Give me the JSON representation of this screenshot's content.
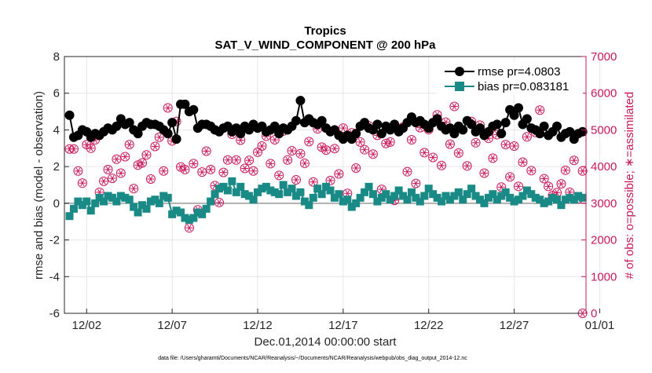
{
  "chart_data": {
    "type": "line",
    "title": "Tropics",
    "subtitle": "SAT_V_WIND_COMPONENT @ 200 hPa",
    "xlabel": "Dec.01,2014 00:00:00 start",
    "ylabel_left": "rmse and bias (model - observation)",
    "ylabel_right": "# of obs: o=possible; ∗=assimilated",
    "footnote": "data file: /Users/gharamti/Documents/NCAR/Reanalysis/~/Documents/NCAR/Reanalysis/webpub/obs_diag_output_2014-12.nc",
    "x_range_days": [
      0.7,
      31.2
    ],
    "left_ylim": [
      -6,
      8
    ],
    "right_ylim": [
      0,
      7000
    ],
    "left_ticks": [
      "-6",
      "-4",
      "-2",
      "0",
      "2",
      "4",
      "6",
      "8"
    ],
    "left_tick_values": [
      -6,
      -4,
      -2,
      0,
      2,
      4,
      6,
      8
    ],
    "right_ticks": [
      "0",
      "1000",
      "2000",
      "3000",
      "4000",
      "5000",
      "6000",
      "7000"
    ],
    "right_tick_values": [
      0,
      1000,
      2000,
      3000,
      4000,
      5000,
      6000,
      7000
    ],
    "x_ticks": [
      "12/02",
      "12/07",
      "12/12",
      "12/17",
      "12/22",
      "12/27",
      "01/01"
    ],
    "x_tick_days": [
      2,
      7,
      12,
      17,
      22,
      27,
      32
    ],
    "grid": true,
    "legend_position": "top-right",
    "colors": {
      "rmse": "#000000",
      "bias": "#1a8a86",
      "obs": "#c8185a",
      "axis": "#262626",
      "zero_line": "#b0b0b0",
      "grid": "#e6e6e6"
    },
    "series": [
      {
        "name": "rmse",
        "legend_label": "rmse pr=4.0803",
        "axis": "left",
        "x": [
          1.0,
          1.25,
          1.5,
          1.75,
          2.0,
          2.25,
          2.5,
          2.75,
          3.0,
          3.25,
          3.5,
          3.75,
          4.0,
          4.25,
          4.5,
          4.75,
          5.0,
          5.25,
          5.5,
          5.75,
          6.0,
          6.25,
          6.5,
          6.75,
          7.0,
          7.25,
          7.5,
          7.75,
          8.0,
          8.25,
          8.5,
          8.75,
          9.0,
          9.25,
          9.5,
          9.75,
          10.0,
          10.25,
          10.5,
          10.75,
          11.0,
          11.25,
          11.5,
          11.75,
          12.0,
          12.25,
          12.5,
          12.75,
          13.0,
          13.25,
          13.5,
          13.75,
          14.0,
          14.25,
          14.5,
          14.75,
          15.0,
          15.25,
          15.5,
          15.75,
          16.0,
          16.25,
          16.5,
          16.75,
          17.0,
          17.25,
          17.5,
          17.75,
          18.0,
          18.25,
          18.5,
          18.75,
          19.0,
          19.25,
          19.5,
          19.75,
          20.0,
          20.25,
          20.5,
          20.75,
          21.0,
          21.25,
          21.5,
          21.75,
          22.0,
          22.25,
          22.5,
          22.75,
          23.0,
          23.25,
          23.5,
          23.75,
          24.0,
          24.25,
          24.5,
          24.75,
          25.0,
          25.25,
          25.5,
          25.75,
          26.0,
          26.25,
          26.5,
          26.75,
          27.0,
          27.25,
          27.5,
          27.75,
          28.0,
          28.25,
          28.5,
          28.75,
          29.0,
          29.25,
          29.5,
          29.75,
          30.0,
          30.25,
          30.5,
          30.75,
          31.0
        ],
        "values": [
          4.8,
          3.6,
          3.7,
          4.0,
          3.9,
          3.6,
          3.8,
          3.7,
          3.9,
          4.1,
          4.0,
          4.2,
          4.6,
          4.3,
          4.4,
          4.0,
          3.8,
          4.2,
          4.4,
          4.3,
          4.3,
          4.2,
          4.0,
          3.8,
          4.4,
          3.5,
          5.4,
          5.4,
          5.0,
          5.1,
          4.1,
          4.3,
          4.3,
          4.2,
          4.0,
          3.9,
          4.1,
          4.2,
          3.9,
          4.1,
          3.8,
          4.2,
          4.0,
          4.3,
          4.1,
          4.2,
          3.9,
          4.0,
          4.2,
          3.8,
          4.1,
          4.0,
          4.2,
          4.5,
          5.6,
          4.4,
          4.6,
          4.4,
          4.3,
          4.5,
          4.1,
          3.9,
          4.0,
          3.7,
          3.5,
          3.7,
          3.5,
          3.8,
          4.2,
          4.4,
          4.1,
          4.0,
          4.3,
          3.8,
          4.2,
          4.0,
          4.3,
          3.9,
          4.1,
          4.4,
          4.7,
          4.4,
          4.5,
          4.3,
          4.1,
          4.4,
          4.6,
          4.2,
          4.0,
          4.1,
          3.8,
          4.2,
          4.0,
          4.5,
          4.3,
          3.9,
          4.1,
          3.7,
          3.9,
          4.2,
          4.3,
          3.8,
          4.4,
          5.1,
          4.8,
          5.2,
          4.3,
          4.6,
          4.1,
          4.0,
          3.8,
          4.2,
          3.7,
          3.9,
          4.2,
          3.6,
          3.8,
          3.9,
          3.5,
          3.8,
          3.9
        ],
        "connect": [
          true,
          true,
          true,
          true,
          true,
          true,
          true,
          true,
          true,
          true,
          true,
          true,
          true,
          true,
          true,
          true,
          true,
          true,
          true,
          true,
          true,
          true,
          true,
          true,
          true,
          true,
          true,
          true,
          true,
          true,
          true,
          true,
          true,
          true,
          true,
          true,
          true,
          true,
          true,
          true,
          true,
          true,
          true,
          true,
          true,
          true,
          true,
          true,
          true,
          true,
          true,
          true,
          true,
          true,
          true,
          true,
          true,
          true,
          true,
          true,
          true,
          true,
          true,
          true,
          true,
          true,
          true,
          true,
          true,
          true,
          true,
          true,
          true,
          true,
          true,
          true,
          true,
          true,
          true,
          true,
          true,
          true,
          true,
          true,
          true,
          true,
          true,
          true,
          true,
          true,
          true,
          true,
          true,
          true,
          true,
          true,
          true,
          true,
          true,
          true,
          true,
          true,
          true,
          true,
          true,
          true,
          true,
          true,
          true,
          true,
          true,
          true,
          true,
          true,
          true,
          true,
          true,
          true,
          true,
          true,
          true
        ]
      },
      {
        "name": "bias",
        "legend_label": "bias pr=0.083181",
        "axis": "left",
        "x": [
          1.0,
          1.25,
          1.5,
          1.75,
          2.0,
          2.25,
          2.5,
          2.75,
          3.0,
          3.25,
          3.5,
          3.75,
          4.0,
          4.25,
          4.5,
          4.75,
          5.0,
          5.25,
          5.5,
          5.75,
          6.0,
          6.25,
          6.5,
          6.75,
          7.0,
          7.25,
          7.5,
          7.75,
          8.0,
          8.25,
          8.5,
          8.75,
          9.0,
          9.25,
          9.5,
          9.75,
          10.0,
          10.25,
          10.5,
          10.75,
          11.0,
          11.25,
          11.5,
          11.75,
          12.0,
          12.25,
          12.5,
          12.75,
          13.0,
          13.25,
          13.5,
          13.75,
          14.0,
          14.25,
          14.5,
          14.75,
          15.0,
          15.25,
          15.5,
          15.75,
          16.0,
          16.25,
          16.5,
          16.75,
          17.0,
          17.25,
          17.5,
          17.75,
          18.0,
          18.25,
          18.5,
          18.75,
          19.0,
          19.25,
          19.5,
          19.75,
          20.0,
          20.25,
          20.5,
          20.75,
          21.0,
          21.25,
          21.5,
          21.75,
          22.0,
          22.25,
          22.5,
          22.75,
          23.0,
          23.25,
          23.5,
          23.75,
          24.0,
          24.25,
          24.5,
          24.75,
          25.0,
          25.25,
          25.5,
          25.75,
          26.0,
          26.25,
          26.5,
          26.75,
          27.0,
          27.25,
          27.5,
          27.75,
          28.0,
          28.25,
          28.5,
          28.75,
          29.0,
          29.25,
          29.5,
          29.75,
          30.0,
          30.25,
          30.5,
          30.75,
          31.0
        ],
        "values": [
          -0.7,
          -0.3,
          0.1,
          -0.1,
          0.1,
          -0.4,
          0.0,
          0.3,
          0.1,
          0.4,
          0.3,
          0.1,
          0.4,
          0.3,
          0.2,
          -0.2,
          -0.5,
          -0.1,
          -0.3,
          0.1,
          0.2,
          0.0,
          0.4,
          0.3,
          -0.6,
          -0.4,
          -0.5,
          -0.8,
          -0.9,
          -0.8,
          -0.5,
          -0.6,
          -0.3,
          0.1,
          0.5,
          0.8,
          0.9,
          0.7,
          1.2,
          0.6,
          0.9,
          0.5,
          0.4,
          0.2,
          0.6,
          0.8,
          0.9,
          0.7,
          0.6,
          0.5,
          1.0,
          0.6,
          0.8,
          0.4,
          0.6,
          0.1,
          -0.1,
          0.3,
          0.8,
          0.5,
          0.9,
          0.7,
          0.3,
          0.5,
          0.1,
          0.2,
          -0.2,
          0.0,
          0.3,
          0.6,
          0.9,
          0.5,
          0.1,
          0.3,
          0.5,
          0.2,
          0.4,
          0.7,
          0.4,
          0.2,
          0.6,
          0.3,
          0.1,
          0.4,
          0.8,
          0.5,
          0.3,
          0.1,
          0.4,
          0.2,
          0.4,
          0.6,
          0.2,
          0.5,
          0.8,
          0.4,
          0.2,
          0.0,
          0.3,
          0.5,
          0.2,
          0.4,
          0.6,
          0.3,
          0.1,
          0.2,
          0.4,
          0.7,
          0.5,
          0.3,
          0.2,
          0.0,
          0.1,
          0.3,
          0.2,
          -0.1,
          0.2,
          0.3,
          0.2,
          0.4,
          0.3
        ],
        "connect": [
          true,
          true,
          true,
          true,
          true,
          true,
          true,
          true,
          true,
          true,
          true,
          true,
          true,
          true,
          true,
          true,
          true,
          true,
          true,
          true,
          true,
          true,
          true,
          true,
          true,
          true,
          true,
          true,
          true,
          true,
          true,
          true,
          true,
          true,
          true,
          true,
          true,
          true,
          true,
          true,
          true,
          true,
          true,
          true,
          true,
          true,
          true,
          true,
          true,
          true,
          true,
          true,
          true,
          true,
          true,
          true,
          true,
          true,
          true,
          true,
          true,
          true,
          true,
          true,
          true,
          true,
          true,
          true,
          true,
          true,
          true,
          true,
          true,
          true,
          true,
          true,
          true,
          true,
          true,
          true,
          true,
          true,
          true,
          true,
          true,
          true,
          true,
          true,
          true,
          true,
          true,
          true,
          true,
          true,
          true,
          true,
          true,
          true,
          true,
          true,
          true,
          true,
          true,
          true,
          true,
          true,
          true,
          true,
          true,
          true,
          true,
          true,
          true,
          true,
          true,
          true,
          true,
          true,
          true,
          true,
          true
        ]
      },
      {
        "name": "obs_count",
        "legend_label": "",
        "axis": "right",
        "x": [
          1.0,
          1.25,
          1.5,
          1.75,
          2.0,
          2.25,
          2.5,
          2.75,
          3.0,
          3.25,
          3.5,
          3.75,
          4.0,
          4.25,
          4.5,
          4.75,
          5.0,
          5.25,
          5.5,
          5.75,
          6.0,
          6.25,
          6.5,
          6.75,
          7.0,
          7.25,
          7.5,
          7.75,
          8.0,
          8.25,
          8.5,
          8.75,
          9.0,
          9.25,
          9.5,
          9.75,
          10.0,
          10.25,
          10.5,
          10.75,
          11.0,
          11.25,
          11.5,
          11.75,
          12.0,
          12.25,
          12.5,
          12.75,
          13.0,
          13.25,
          13.5,
          13.75,
          14.0,
          14.25,
          14.5,
          14.75,
          15.0,
          15.25,
          15.5,
          15.75,
          16.0,
          16.25,
          16.5,
          16.75,
          17.0,
          17.25,
          17.5,
          17.75,
          18.0,
          18.25,
          18.5,
          18.75,
          19.0,
          19.25,
          19.5,
          19.75,
          20.0,
          20.25,
          20.5,
          20.75,
          21.0,
          21.25,
          21.5,
          21.75,
          22.0,
          22.25,
          22.5,
          22.75,
          23.0,
          23.25,
          23.5,
          23.75,
          24.0,
          24.25,
          24.5,
          24.75,
          25.0,
          25.25,
          25.5,
          25.75,
          26.0,
          26.25,
          26.5,
          26.75,
          27.0,
          27.25,
          27.5,
          27.75,
          28.0,
          28.25,
          28.5,
          28.75,
          29.0,
          29.25,
          29.5,
          29.75,
          30.0,
          30.25,
          30.5,
          30.75,
          31.0
        ],
        "values": [
          4480,
          4480,
          3880,
          3550,
          4600,
          4500,
          4730,
          3300,
          3600,
          3920,
          3680,
          4200,
          3820,
          4270,
          4600,
          3400,
          4040,
          4100,
          4320,
          3660,
          4550,
          4800,
          3880,
          5600,
          4700,
          5230,
          3990,
          3920,
          2330,
          4080,
          2820,
          3850,
          4420,
          3920,
          3480,
          3020,
          3840,
          4180,
          4880,
          4180,
          4720,
          3950,
          4170,
          3880,
          4390,
          4560,
          4830,
          4080,
          4730,
          3760,
          4970,
          4180,
          4430,
          3640,
          4350,
          4090,
          4680,
          3580,
          5030,
          4530,
          4450,
          3620,
          4490,
          3800,
          5050,
          3270,
          4920,
          3960,
          4670,
          4460,
          5110,
          4340,
          4850,
          3380,
          4630,
          4670,
          3080,
          4980,
          5080,
          3860,
          4730,
          3540,
          5060,
          4380,
          5010,
          4250,
          5410,
          4030,
          5210,
          4610,
          5640,
          4370,
          6630,
          4020,
          5230,
          4650,
          5130,
          3820,
          4770,
          4230,
          4870,
          3440,
          4600,
          3720,
          4560,
          3460,
          4120,
          4810,
          3890,
          4930,
          5540,
          3670,
          3460,
          3210,
          3290,
          3530,
          3900,
          3300,
          4170,
          3120,
          3880
        ],
        "connect": [
          true,
          true,
          true,
          true,
          true,
          true,
          true,
          true,
          true,
          true,
          true,
          true,
          true,
          true,
          true,
          true,
          true,
          true,
          true,
          true,
          true,
          true,
          true,
          true,
          true,
          true,
          true,
          true,
          true,
          true,
          true,
          true,
          true,
          true,
          true,
          true,
          true,
          true,
          true,
          true,
          true,
          true,
          true,
          true,
          true,
          true,
          true,
          true,
          true,
          true,
          true,
          true,
          true,
          true,
          true,
          true,
          true,
          true,
          true,
          true,
          true,
          true,
          true,
          true,
          true,
          true,
          true,
          true,
          true,
          true,
          true,
          true,
          true,
          true,
          true,
          true,
          true,
          true,
          true,
          true,
          true,
          true,
          true,
          true,
          true,
          true,
          true,
          true,
          true,
          true,
          true,
          true,
          true,
          true,
          true,
          true,
          true,
          true,
          true,
          true,
          true,
          true,
          true,
          true,
          true,
          true,
          true,
          true,
          true,
          true,
          true,
          true,
          true,
          true,
          true,
          true,
          true,
          true,
          true,
          true,
          true
        ]
      }
    ],
    "extra_obs_points": [
      {
        "x": 31.0,
        "value": 0
      }
    ]
  }
}
